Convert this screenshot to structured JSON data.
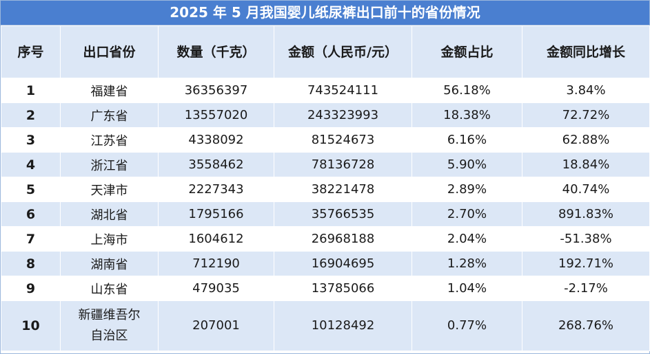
{
  "title": "2025 年 5 月我国婴儿纸尿裤出口前十的省份情况",
  "headers": [
    "序号",
    "出口省份",
    "数量（千克）",
    "金额（人民币/元）",
    "金额占比",
    "金额同比增长"
  ],
  "rows": [
    {
      "idx": "1",
      "province": "福建省",
      "quantity": "36356397",
      "amount": "743524111",
      "share": "56.18%",
      "growth": "3.84%"
    },
    {
      "idx": "2",
      "province": "广东省",
      "quantity": "13557020",
      "amount": "243323993",
      "share": "18.38%",
      "growth": "72.72%"
    },
    {
      "idx": "3",
      "province": "江苏省",
      "quantity": "4338092",
      "amount": "81524673",
      "share": "6.16%",
      "growth": "62.88%"
    },
    {
      "idx": "4",
      "province": "浙江省",
      "quantity": "3558462",
      "amount": "78136728",
      "share": "5.90%",
      "growth": "18.84%"
    },
    {
      "idx": "5",
      "province": "天津市",
      "quantity": "2227343",
      "amount": "38221478",
      "share": "2.89%",
      "growth": "40.74%"
    },
    {
      "idx": "6",
      "province": "湖北省",
      "quantity": "1795166",
      "amount": "35766535",
      "share": "2.70%",
      "growth": "891.83%"
    },
    {
      "idx": "7",
      "province": "上海市",
      "quantity": "1604612",
      "amount": "26968188",
      "share": "2.04%",
      "growth": "-51.38%"
    },
    {
      "idx": "8",
      "province": "湖南省",
      "quantity": "712190",
      "amount": "16904695",
      "share": "1.28%",
      "growth": "192.71%"
    },
    {
      "idx": "9",
      "province": "山东省",
      "quantity": "479035",
      "amount": "13785066",
      "share": "1.04%",
      "growth": "-2.17%"
    },
    {
      "idx": "10",
      "province": "新疆维吾尔自治区",
      "quantity": "207001",
      "amount": "10128492",
      "share": "0.77%",
      "growth": "268.76%"
    }
  ],
  "colors": {
    "title_bg": "#4a7fd0",
    "header_bg": "#dce7f6",
    "stripe_bg": "#dce7f6"
  }
}
